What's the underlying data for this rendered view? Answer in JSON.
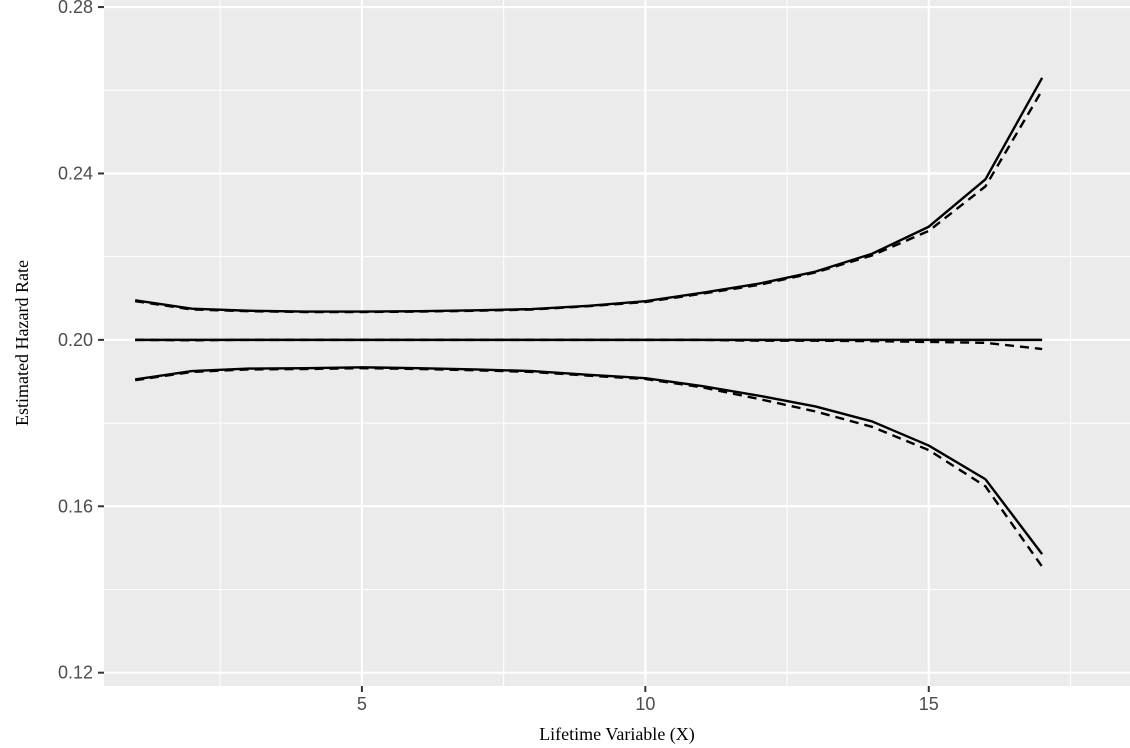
{
  "chart_data": {
    "type": "line",
    "xlabel": "Lifetime Variable (X)",
    "ylabel": "Estimated Hazard Rate",
    "xlim": [
      0.45,
      18.55
    ],
    "ylim": [
      0.1168,
      0.2817
    ],
    "x_ticks": [
      5,
      10,
      15
    ],
    "x_tick_labels": [
      "5",
      "10",
      "15"
    ],
    "x_minor_ticks": [
      2.5,
      7.5,
      12.5,
      17.5
    ],
    "y_ticks": [
      0.12,
      0.16,
      0.2,
      0.24,
      0.28
    ],
    "y_tick_labels": [
      "0.12",
      "0.16",
      "0.20",
      "0.24",
      "0.28"
    ],
    "y_minor_ticks": [
      0.14,
      0.18,
      0.22,
      0.26
    ],
    "grid": true,
    "panel_background": "#ebebeb",
    "grid_color": "#ffffff",
    "line_color": "#000000",
    "x": [
      1,
      2,
      3,
      4,
      5,
      6,
      7,
      8,
      9,
      10,
      11,
      12,
      13,
      14,
      15,
      16,
      17
    ],
    "series": [
      {
        "style": "solid",
        "values": [
          0.2095,
          0.2075,
          0.207,
          0.2068,
          0.2068,
          0.2069,
          0.2071,
          0.2074,
          0.2082,
          0.2093,
          0.2113,
          0.2135,
          0.2164,
          0.2207,
          0.2272,
          0.2386,
          0.263
        ]
      },
      {
        "style": "dashed",
        "values": [
          0.2093,
          0.2073,
          0.2069,
          0.2067,
          0.2067,
          0.2068,
          0.207,
          0.2073,
          0.2081,
          0.2091,
          0.2111,
          0.2132,
          0.2162,
          0.2203,
          0.2262,
          0.2369,
          0.26
        ]
      },
      {
        "style": "solid",
        "values": [
          0.2,
          0.2,
          0.2,
          0.2,
          0.2,
          0.2,
          0.2,
          0.2,
          0.2,
          0.2,
          0.2,
          0.2,
          0.2,
          0.2,
          0.2,
          0.2,
          0.2
        ]
      },
      {
        "style": "dashed",
        "values": [
          0.2,
          0.1999,
          0.2,
          0.2,
          0.2,
          0.2,
          0.2,
          0.2,
          0.2,
          0.2,
          0.2,
          0.1998,
          0.1998,
          0.1997,
          0.1995,
          0.1993,
          0.1978
        ]
      },
      {
        "style": "solid",
        "values": [
          0.1905,
          0.1925,
          0.1931,
          0.1932,
          0.1934,
          0.1932,
          0.1929,
          0.1925,
          0.1916,
          0.1908,
          0.1889,
          0.1866,
          0.184,
          0.1804,
          0.1746,
          0.1665,
          0.1485
        ]
      },
      {
        "style": "dashed",
        "values": [
          0.1903,
          0.1923,
          0.1929,
          0.193,
          0.1932,
          0.193,
          0.1927,
          0.1923,
          0.1914,
          0.1906,
          0.1886,
          0.1858,
          0.1828,
          0.1791,
          0.1735,
          0.1648,
          0.1455
        ]
      }
    ]
  }
}
